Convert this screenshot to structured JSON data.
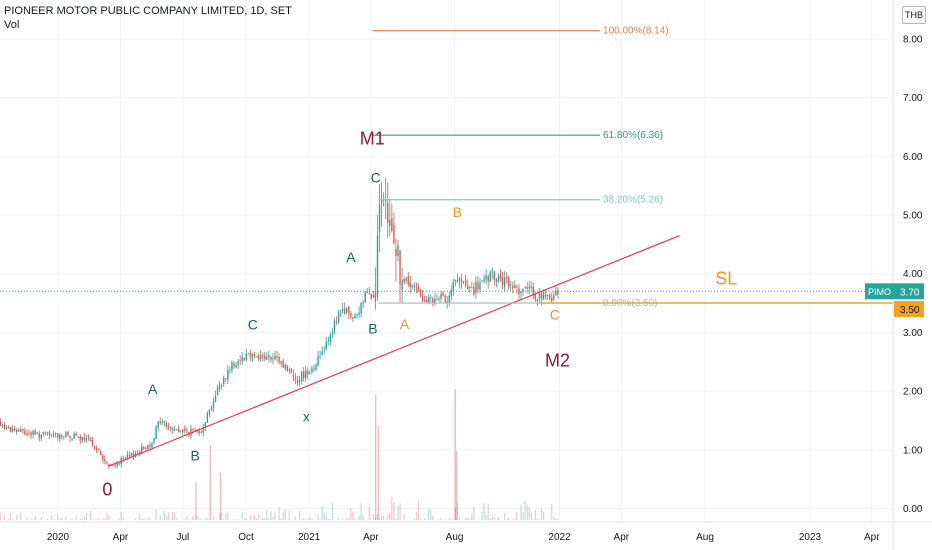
{
  "header": {
    "title": "PIONEER MOTOR PUBLIC COMPANY LIMITED, 1D, SET",
    "volume_label": "Vol"
  },
  "currency": "THB",
  "colors": {
    "up": "#26a69a",
    "down": "#ef5350",
    "trendline": "#f23645",
    "fib_100": "#f57c42",
    "fib_618": "#2a9d8f",
    "fib_382": "#7ecbc4",
    "fib_0": "#b2b5be",
    "stop_loss": "#f7a21b",
    "wave_teal": "#1e5f6b",
    "wave_orange": "#f7931e",
    "wave_maroon": "#8b1a3a",
    "price_tag": "#26a69a",
    "sl_tag": "#f7a21b"
  },
  "chart_data": {
    "type": "candlestick",
    "symbol": "PIMO",
    "last_price": "3.70",
    "stop_level": "3.50",
    "ylim": [
      -0.1,
      8.35
    ],
    "y_ticks": [
      "0.00",
      "1.00",
      "2.00",
      "3.00",
      "4.00",
      "5.00",
      "6.00",
      "7.00",
      "8.00"
    ],
    "x_ticks": [
      "2020",
      "Apr",
      "Jul",
      "Oct",
      "2021",
      "Apr",
      "Aug",
      "2022",
      "Apr",
      "Aug",
      "2023",
      "Apr"
    ],
    "x_tick_dates": [
      "2020-01-01",
      "2020-04-01",
      "2020-07-01",
      "2020-10-01",
      "2021-01-01",
      "2021-04-01",
      "2021-08-01",
      "2022-01-01",
      "2022-04-01",
      "2022-08-01",
      "2023-01-01",
      "2023-04-01"
    ],
    "x_range": [
      "2019-09-15",
      "2023-05-15"
    ],
    "price_path": [
      {
        "date": "2019-09-15",
        "close": 1.65
      },
      {
        "date": "2019-10-15",
        "close": 1.38
      },
      {
        "date": "2019-12-01",
        "close": 1.25
      },
      {
        "date": "2020-01-15",
        "close": 1.25
      },
      {
        "date": "2020-02-20",
        "close": 1.12
      },
      {
        "date": "2020-03-15",
        "close": 0.7
      },
      {
        "date": "2020-04-20",
        "close": 0.92
      },
      {
        "date": "2020-05-15",
        "close": 1.1
      },
      {
        "date": "2020-05-28",
        "close": 1.5
      },
      {
        "date": "2020-06-15",
        "close": 1.35
      },
      {
        "date": "2020-07-10",
        "close": 1.3
      },
      {
        "date": "2020-07-28",
        "close": 1.35
      },
      {
        "date": "2020-08-20",
        "close": 2.0
      },
      {
        "date": "2020-09-10",
        "close": 2.45
      },
      {
        "date": "2020-10-05",
        "close": 2.65
      },
      {
        "date": "2020-10-20",
        "close": 2.6
      },
      {
        "date": "2020-11-20",
        "close": 2.5
      },
      {
        "date": "2020-12-15",
        "close": 2.2
      },
      {
        "date": "2021-01-10",
        "close": 2.45
      },
      {
        "date": "2021-02-01",
        "close": 3.0
      },
      {
        "date": "2021-02-20",
        "close": 3.4
      },
      {
        "date": "2021-03-10",
        "close": 3.2
      },
      {
        "date": "2021-03-28",
        "close": 3.8
      },
      {
        "date": "2021-04-08",
        "close": 3.5
      },
      {
        "date": "2021-04-12",
        "close": 5.0
      },
      {
        "date": "2021-04-22",
        "close": 4.9
      },
      {
        "date": "2021-05-05",
        "close": 4.7
      },
      {
        "date": "2021-05-15",
        "close": 3.9
      },
      {
        "date": "2021-06-10",
        "close": 3.7
      },
      {
        "date": "2021-06-28",
        "close": 3.5
      },
      {
        "date": "2021-07-20",
        "close": 3.6
      },
      {
        "date": "2021-08-05",
        "close": 3.9
      },
      {
        "date": "2021-08-25",
        "close": 3.7
      },
      {
        "date": "2021-09-25",
        "close": 3.95
      },
      {
        "date": "2021-10-20",
        "close": 3.8
      },
      {
        "date": "2021-11-15",
        "close": 3.7
      },
      {
        "date": "2021-12-15",
        "close": 3.55
      },
      {
        "date": "2021-12-30",
        "close": 3.7
      }
    ],
    "volume_spikes": [
      {
        "date": "2020-07-20",
        "value": 0.3
      },
      {
        "date": "2020-08-10",
        "value": 0.6
      },
      {
        "date": "2020-08-25",
        "value": 0.38
      },
      {
        "date": "2021-04-08",
        "value": 1.0
      },
      {
        "date": "2021-04-12",
        "value": 0.75
      },
      {
        "date": "2021-08-02",
        "value": 1.05
      },
      {
        "date": "2021-08-04",
        "value": 0.55
      }
    ],
    "trendline": {
      "start": {
        "date": "2020-03-15",
        "price": 0.72
      },
      "end": {
        "date": "2022-06-25",
        "price": 4.65
      }
    },
    "fib_levels": [
      {
        "label": "100.00%(8.14)",
        "price": 8.14,
        "start": "2021-04-03",
        "end": "2022-03-01",
        "color_key": "fib_100"
      },
      {
        "label": "61.80%(6.36)",
        "price": 6.36,
        "start": "2021-04-03",
        "end": "2022-03-01",
        "color_key": "fib_618"
      },
      {
        "label": "38.20%(5.26)",
        "price": 5.26,
        "start": "2021-04-12",
        "end": "2022-03-01",
        "color_key": "fib_382"
      },
      {
        "label": "0.00%(3.50)",
        "price": 3.5,
        "start": "2021-04-12",
        "end": "2022-03-01",
        "color_key": "fib_0"
      }
    ],
    "stop_line": {
      "price": 3.5,
      "start": "2021-12-05"
    },
    "wave_labels": [
      {
        "text": "0",
        "date": "2020-03-13",
        "price": 0.22,
        "color_key": "wave_maroon",
        "size": 18
      },
      {
        "text": "A",
        "date": "2020-05-18",
        "price": 1.95,
        "color_key": "wave_teal",
        "size": 14
      },
      {
        "text": "B",
        "date": "2020-07-19",
        "price": 0.82,
        "color_key": "wave_teal",
        "size": 14
      },
      {
        "text": "C",
        "date": "2020-10-11",
        "price": 3.05,
        "color_key": "wave_teal",
        "size": 14
      },
      {
        "text": "x",
        "date": "2020-12-28",
        "price": 1.48,
        "color_key": "wave_teal",
        "size": 14
      },
      {
        "text": "A",
        "date": "2021-03-03",
        "price": 4.2,
        "color_key": "wave_teal",
        "size": 14
      },
      {
        "text": "B",
        "date": "2021-04-04",
        "price": 2.98,
        "color_key": "wave_teal",
        "size": 14
      },
      {
        "text": "C",
        "date": "2021-04-08",
        "price": 5.55,
        "color_key": "wave_teal",
        "size": 14
      },
      {
        "text": "M1",
        "date": "2021-04-03",
        "price": 6.2,
        "color_key": "wave_maroon",
        "size": 18
      },
      {
        "text": "A",
        "date": "2021-05-20",
        "price": 3.06,
        "color_key": "wave_orange",
        "size": 14
      },
      {
        "text": "B",
        "date": "2021-08-05",
        "price": 4.97,
        "color_key": "wave_orange",
        "size": 14
      },
      {
        "text": "C",
        "date": "2021-12-25",
        "price": 3.22,
        "color_key": "wave_orange",
        "size": 14
      },
      {
        "text": "M2",
        "date": "2021-12-29",
        "price": 2.42,
        "color_key": "wave_maroon",
        "size": 18
      },
      {
        "text": "SL",
        "date": "2022-09-01",
        "price": 3.82,
        "color_key": "wave_orange",
        "size": 18
      }
    ]
  }
}
